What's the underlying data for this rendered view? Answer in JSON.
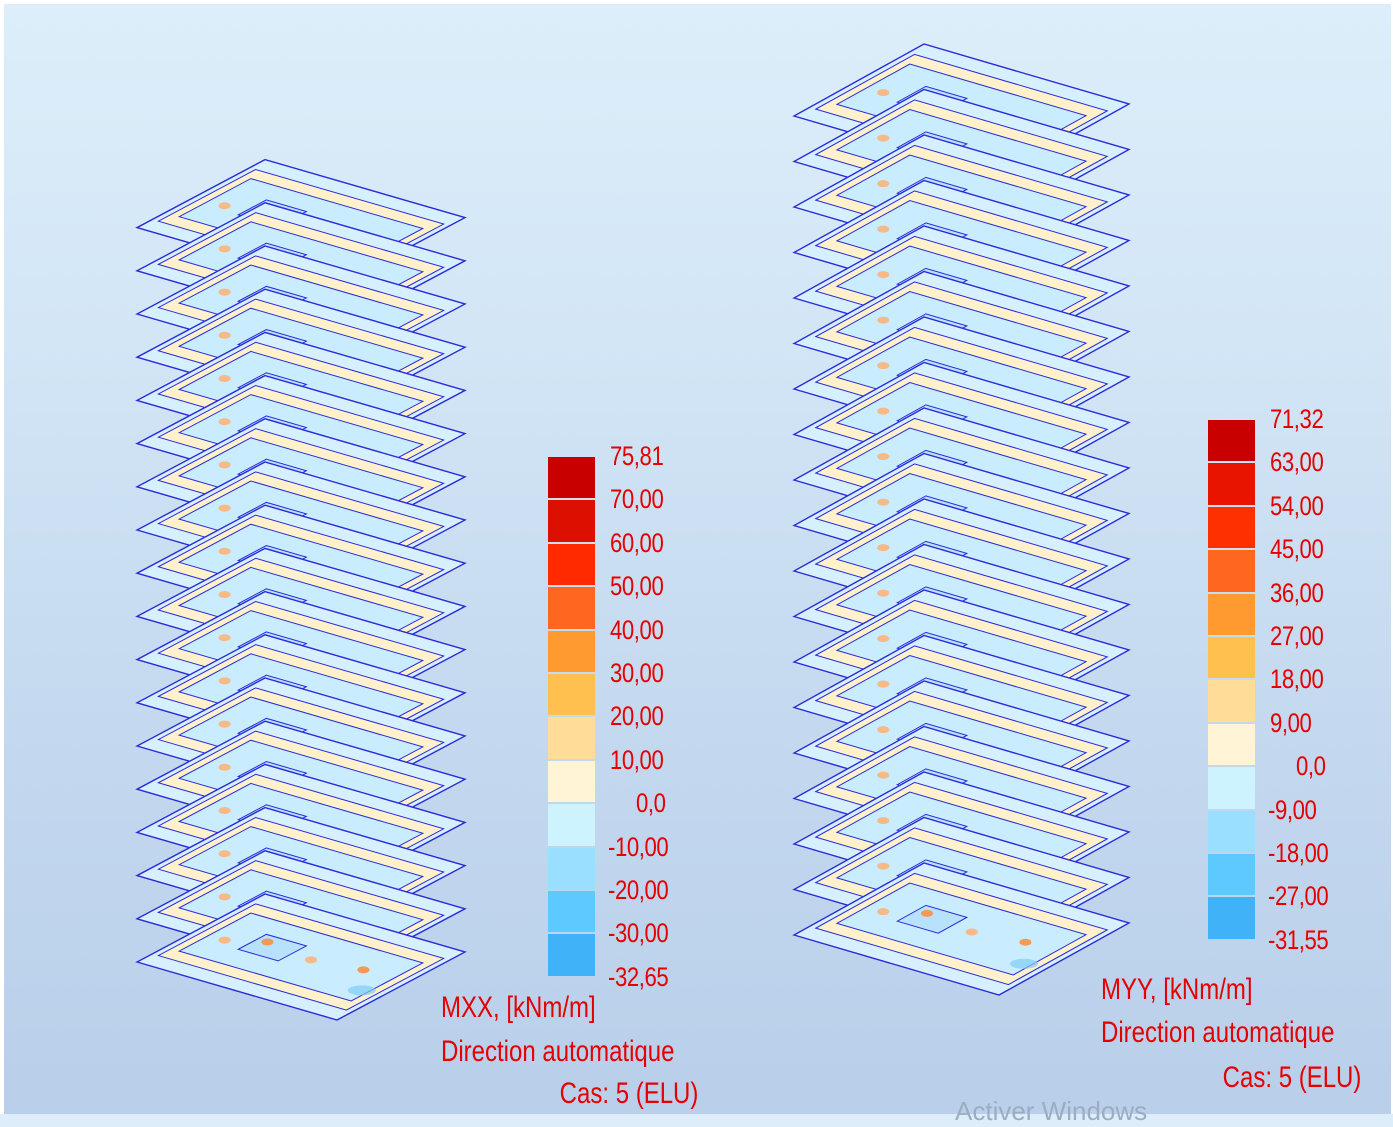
{
  "left_panel": {
    "legend": {
      "ticks": [
        "75,81",
        "70,00",
        "60,00",
        "50,00",
        "40,00",
        "30,00",
        "20,00",
        "10,00",
        "0,0",
        "-10,00",
        "-20,00",
        "-30,00",
        "-32,65"
      ],
      "colors": [
        "#c80000",
        "#dc1000",
        "#ff2a00",
        "#ff6620",
        "#ff9a30",
        "#ffc050",
        "#ffdc98",
        "#fff5d6",
        "#cdf3ff",
        "#9adfff",
        "#5ccaff",
        "#3fb2f8"
      ]
    },
    "caption": {
      "quantity": "MXX, [kNm/m]",
      "direction": "Direction automatique",
      "case": "Cas: 5 (ELU)"
    }
  },
  "right_panel": {
    "legend": {
      "ticks": [
        "71,32",
        "63,00",
        "54,00",
        "45,00",
        "36,00",
        "27,00",
        "18,00",
        "9,00",
        "0,0",
        "-9,00",
        "-18,00",
        "-27,00",
        "-31,55"
      ],
      "colors": [
        "#c80000",
        "#e81400",
        "#ff3000",
        "#ff6620",
        "#ff9a30",
        "#ffc050",
        "#ffdc98",
        "#fff5d6",
        "#cdf3ff",
        "#9adfff",
        "#5ccaff",
        "#3fb2f8"
      ]
    },
    "caption": {
      "quantity": "MYY, [kNm/m]",
      "direction": "Direction automatique",
      "case": "Cas: 5 (ELU)"
    }
  },
  "watermark": "Activer Windows"
}
